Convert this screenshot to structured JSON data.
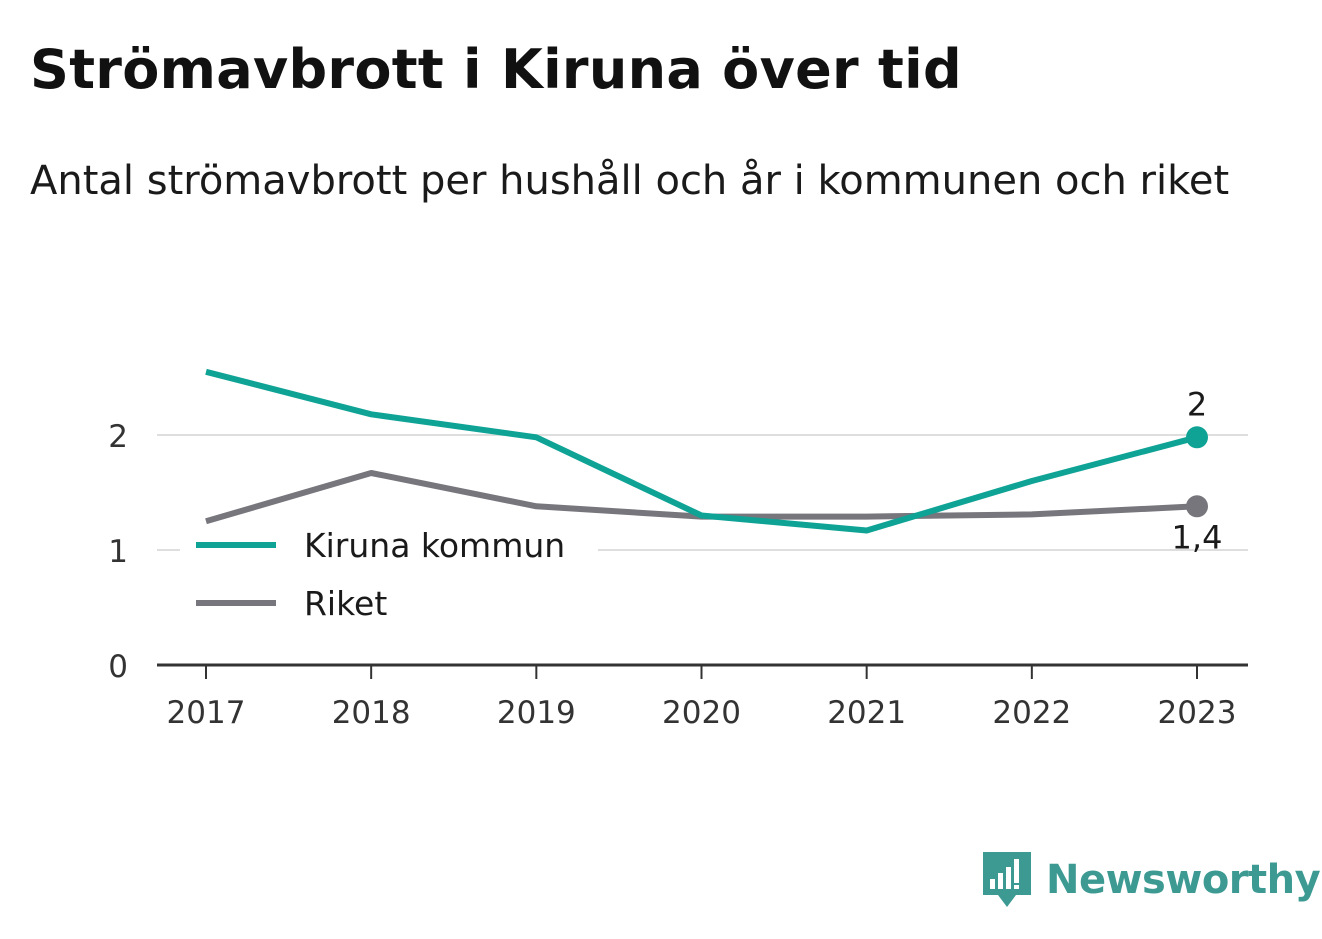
{
  "title": "Strömavbrott i Kiruna över tid",
  "subtitle": "Antal strömavbrott per hushåll och år i kommunen och riket",
  "brand": {
    "name": "Newsworthy",
    "color": "#3d9a93",
    "icon": "newsworthy-logo-icon"
  },
  "chart_data": {
    "type": "line",
    "x": [
      "2017",
      "2018",
      "2019",
      "2020",
      "2021",
      "2022",
      "2023"
    ],
    "series": [
      {
        "name": "Kiruna kommun",
        "color": "#0fa396",
        "values": [
          2.55,
          2.18,
          1.98,
          1.3,
          1.17,
          1.6,
          1.98
        ],
        "end_label": "2"
      },
      {
        "name": "Riket",
        "color": "#76767c",
        "values": [
          1.25,
          1.67,
          1.38,
          1.29,
          1.29,
          1.31,
          1.38
        ],
        "end_label": "1,4"
      }
    ],
    "y_ticks": [
      0,
      1,
      2
    ],
    "y_tick_labels": [
      "0",
      "1",
      "2"
    ],
    "ylim": [
      0,
      2.7
    ],
    "xlabel": "",
    "ylabel": "",
    "grid": true,
    "legend": "bottom-left"
  }
}
